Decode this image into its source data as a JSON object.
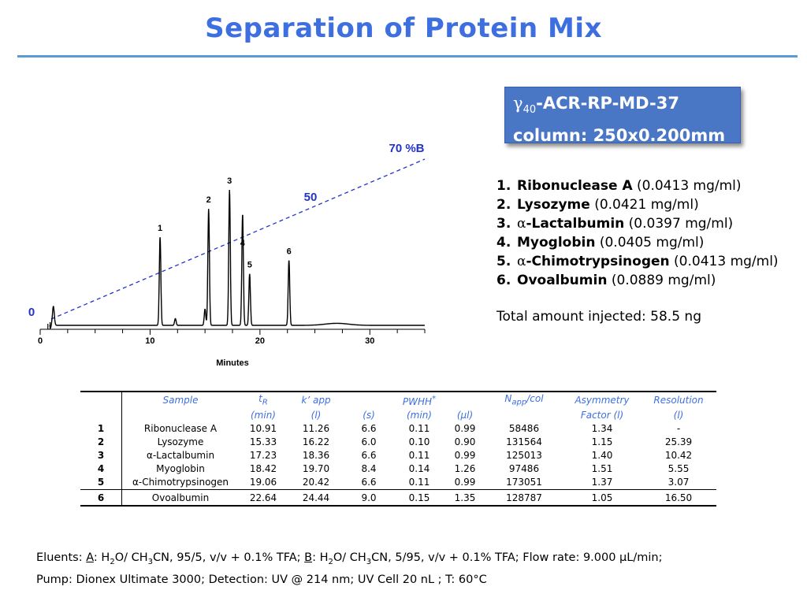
{
  "title": "Separation of Protein Mix",
  "column_box": {
    "line1_gamma": "γ",
    "line1_sub": "40",
    "line1_rest": "-ACR-RP-MD-37",
    "line2": "column: 250x0.200mm"
  },
  "proteins": [
    {
      "num": "1.",
      "name": "Ribonuclease A",
      "conc": "(0.0413 mg/ml)"
    },
    {
      "num": "2.",
      "name": "Lysozyme",
      "conc": "(0.0421 mg/ml)"
    },
    {
      "num": "3.",
      "greek": "α",
      "name": "-Lactalbumin",
      "conc": "(0.0397 mg/ml)"
    },
    {
      "num": "4.",
      "name": "Myoglobin",
      "conc": "(0.0405 mg/ml)"
    },
    {
      "num": "5.",
      "greek": "α",
      "name": "-Chimotrypsinogen",
      "conc": "(0.0413 mg/ml)"
    },
    {
      "num": "6.",
      "name": "Ovoalbumin",
      "conc": "(0.0889 mg/ml)"
    }
  ],
  "total_injected": "Total amount injected: 58.5 ng",
  "chart_data": {
    "type": "line",
    "xlabel": "Minutes",
    "ylabel": "",
    "xlim": [
      0,
      35
    ],
    "x_ticks": [
      "0",
      "10",
      "20",
      "30"
    ],
    "peaks": [
      {
        "label": "1",
        "x": 10.91,
        "height": 0.65
      },
      {
        "label": "2",
        "x": 15.33,
        "height": 0.86
      },
      {
        "label": "3",
        "x": 17.23,
        "height": 1.0
      },
      {
        "label": "4",
        "x": 18.42,
        "height": 0.82
      },
      {
        "label": "5",
        "x": 19.06,
        "height": 0.38
      },
      {
        "label": "6",
        "x": 22.64,
        "height": 0.48
      }
    ],
    "minor_peaks": [
      {
        "x": 12.3,
        "height": 0.05
      },
      {
        "x": 15.0,
        "height": 0.12
      }
    ],
    "gradient": {
      "x": [
        1,
        35
      ],
      "y": [
        0,
        70
      ],
      "labels": [
        {
          "text": "0",
          "at_x": 0
        },
        {
          "text": "50",
          "at_x": 25
        },
        {
          "text": "70 %B",
          "at_x": 35
        }
      ],
      "color": "#2233cc"
    }
  },
  "table": {
    "headers": [
      [
        "",
        "Sample",
        "t",
        "k’ app",
        "",
        "PWHH",
        "",
        "N",
        "Asymmetry",
        "Resolution"
      ],
      [
        "",
        "",
        "(min)",
        "(l)",
        "(s)",
        "(min)",
        "(μl)",
        "",
        "Factor (l)",
        "(l)"
      ]
    ],
    "header_sub": {
      "tR": "R",
      "Napp": "app",
      "pwhh_sup": "*",
      "napp_suffix": "/col"
    },
    "rows": [
      [
        "1",
        "Ribonuclease A",
        "10.91",
        "11.26",
        "6.6",
        "0.11",
        "0.99",
        "58486",
        "1.34",
        "-"
      ],
      [
        "2",
        "Lysozyme",
        "15.33",
        "16.22",
        "6.0",
        "0.10",
        "0.90",
        "131564",
        "1.15",
        "25.39"
      ],
      [
        "3",
        "α-Lactalbumin",
        "17.23",
        "18.36",
        "6.6",
        "0.11",
        "0.99",
        "125013",
        "1.40",
        "10.42"
      ],
      [
        "4",
        "Myoglobin",
        "18.42",
        "19.70",
        "8.4",
        "0.14",
        "1.26",
        "97486",
        "1.51",
        "5.55"
      ],
      [
        "5",
        "α-Chimotrypsinogen",
        "19.06",
        "20.42",
        "6.6",
        "0.11",
        "0.99",
        "173051",
        "1.37",
        "3.07"
      ],
      [
        "6",
        "Ovoalbumin",
        "22.64",
        "24.44",
        "9.0",
        "0.15",
        "1.35",
        "128787",
        "1.05",
        "16.50"
      ]
    ]
  },
  "eluents": {
    "line1_a": "Eluents: ",
    "a_label": "A",
    "line1_b": ": H",
    "line1_c": "O/ CH",
    "line1_d": "CN, 95/5, v/v + 0.1% TFA; ",
    "b_label": "B",
    "line1_e": ": H",
    "line1_f": "O/ CH",
    "line1_g": "CN, 5/95, v/v + 0.1% TFA; Flow rate: 9.000 μL/min;",
    "sub2": "2",
    "sub3": "3",
    "line2": "Pump: Dionex Ultimate 3000; Detection: UV @ 214 nm; UV Cell  20 nL ; T: 60°C"
  }
}
